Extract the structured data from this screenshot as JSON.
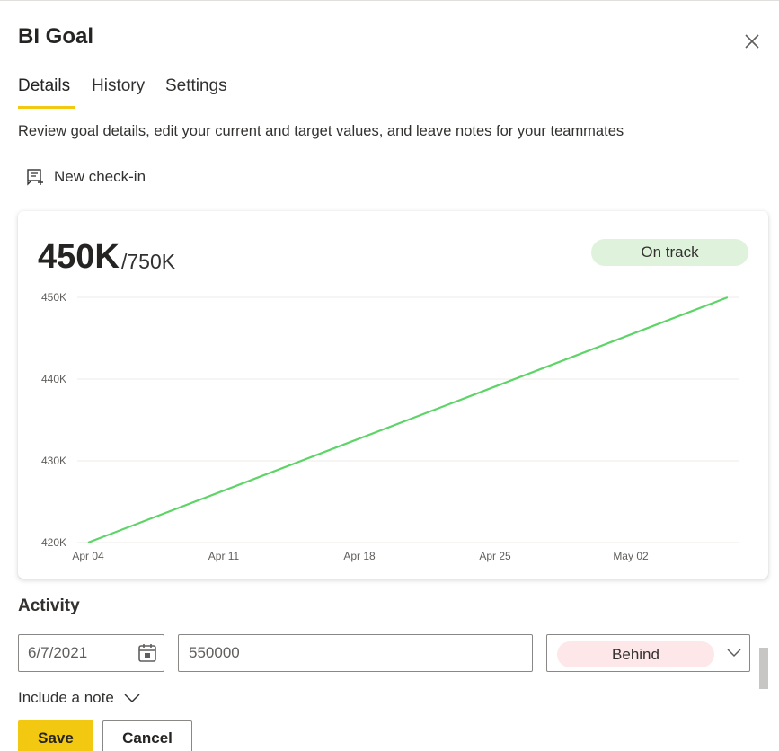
{
  "dialog": {
    "title": "BI Goal",
    "close_icon": "close-icon"
  },
  "tabs": [
    {
      "label": "Details",
      "active": true
    },
    {
      "label": "History",
      "active": false
    },
    {
      "label": "Settings",
      "active": false
    }
  ],
  "accent_color": "#f2c811",
  "description": "Review goal details, edit your current and target values, and leave notes for your teammates",
  "new_checkin": {
    "label": "New check-in",
    "icon": "checkin-note-icon"
  },
  "summary": {
    "current": "450K",
    "target": "/750K",
    "status": "On track",
    "status_color": "#dff3dc"
  },
  "chart_data": {
    "type": "line",
    "title": "",
    "xlabel": "",
    "ylabel": "",
    "x_ticks": [
      "Apr 04",
      "Apr 11",
      "Apr 18",
      "Apr 25",
      "May 02"
    ],
    "y_ticks": [
      "420K",
      "430K",
      "440K",
      "450K"
    ],
    "ylim": [
      420000,
      450000
    ],
    "xlim": [
      "2021-04-04",
      "2021-05-07"
    ],
    "grid": true,
    "series": [
      {
        "color": "#5dd467",
        "points": [
          {
            "x": "2021-04-04",
            "y": 420000
          },
          {
            "x": "2021-05-07",
            "y": 450000
          }
        ]
      }
    ]
  },
  "activity": {
    "label": "Activity",
    "date": "6/7/2021",
    "date_icon": "calendar-icon",
    "value": "550000",
    "status": "Behind",
    "status_color": "#fde7e9",
    "include_note": "Include a note"
  },
  "buttons": {
    "save": "Save",
    "cancel": "Cancel"
  }
}
